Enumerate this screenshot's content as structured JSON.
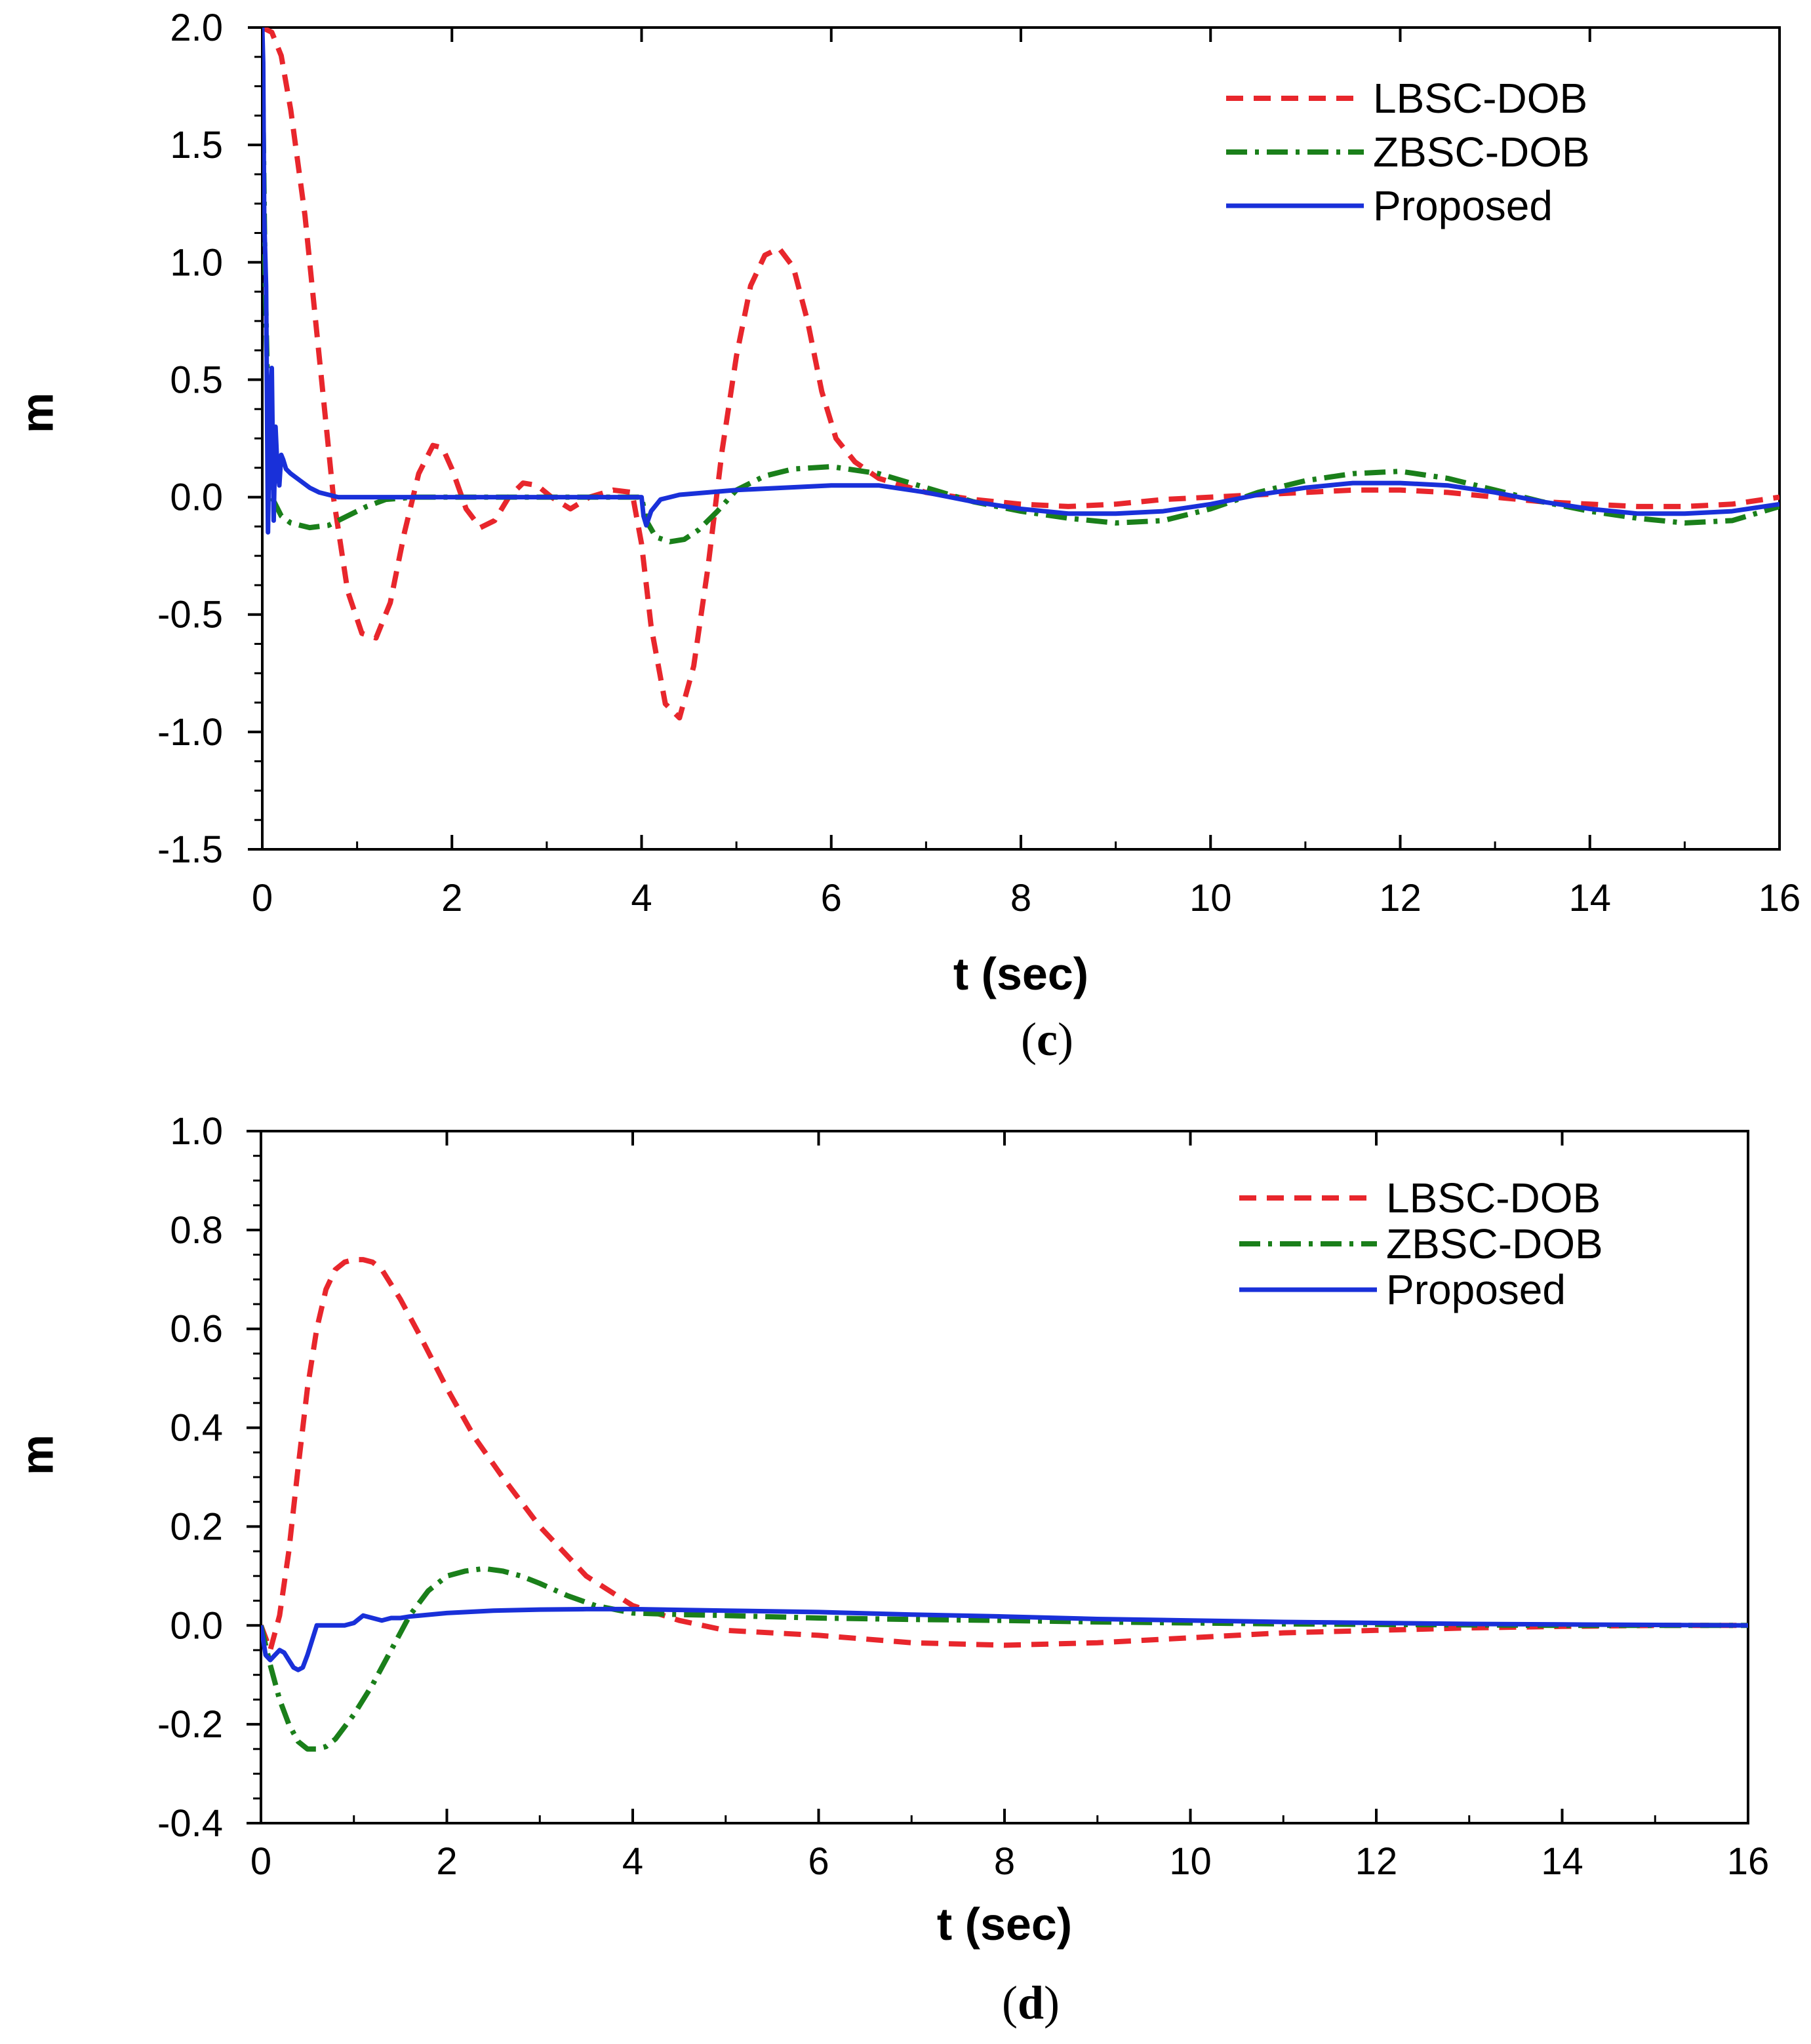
{
  "chart_data": [
    {
      "type": "line",
      "id": "c",
      "caption_open": "(",
      "caption_letter": "c",
      "caption_close": ")",
      "xlabel": "t (sec)",
      "ylabel": "m",
      "xlim": [
        0,
        16
      ],
      "ylim": [
        -1.5,
        2.0
      ],
      "xticks": [
        0,
        2,
        4,
        6,
        8,
        10,
        12,
        14,
        16
      ],
      "yticks": [
        -1.5,
        -1.0,
        -0.5,
        0.0,
        0.5,
        1.0,
        1.5,
        2.0
      ],
      "xtick_labels": [
        "0",
        "2",
        "4",
        "6",
        "8",
        "10",
        "12",
        "14",
        "16"
      ],
      "ytick_labels": [
        "-1.5",
        "-1.0",
        "-0.5",
        "0.0",
        "0.5",
        "1.0",
        "1.5",
        "2.0"
      ],
      "legend_position": "top-right",
      "series": [
        {
          "name": "LBSC-DOB",
          "color": "#e8262c",
          "style": "dashed",
          "x": [
            0,
            0.1,
            0.2,
            0.3,
            0.45,
            0.6,
            0.75,
            0.9,
            1.05,
            1.2,
            1.35,
            1.5,
            1.65,
            1.8,
            1.9,
            2.0,
            2.15,
            2.3,
            2.45,
            2.6,
            2.75,
            2.9,
            3.05,
            3.25,
            3.45,
            3.7,
            3.9,
            4.0,
            4.1,
            4.25,
            4.4,
            4.55,
            4.7,
            4.85,
            5.0,
            5.15,
            5.3,
            5.45,
            5.6,
            5.75,
            5.9,
            6.05,
            6.25,
            6.5,
            7.0,
            7.5,
            8.0,
            8.5,
            9.0,
            9.5,
            10.0,
            10.5,
            11.0,
            11.5,
            12.0,
            12.5,
            13.0,
            13.5,
            14.0,
            14.5,
            15.0,
            15.5,
            16.0
          ],
          "y": [
            2.0,
            1.98,
            1.88,
            1.65,
            1.2,
            0.6,
            0.0,
            -0.4,
            -0.58,
            -0.6,
            -0.45,
            -0.15,
            0.1,
            0.22,
            0.21,
            0.12,
            -0.05,
            -0.13,
            -0.1,
            0.0,
            0.06,
            0.05,
            0.0,
            -0.05,
            0.0,
            0.03,
            0.02,
            -0.2,
            -0.55,
            -0.88,
            -0.94,
            -0.72,
            -0.3,
            0.2,
            0.6,
            0.9,
            1.03,
            1.06,
            0.98,
            0.75,
            0.45,
            0.25,
            0.15,
            0.08,
            0.02,
            -0.01,
            -0.03,
            -0.04,
            -0.03,
            -0.01,
            0.0,
            0.01,
            0.02,
            0.03,
            0.03,
            0.02,
            0.0,
            -0.02,
            -0.03,
            -0.04,
            -0.04,
            -0.03,
            0.0
          ]
        },
        {
          "name": "ZBSC-DOB",
          "color": "#1a7f1a",
          "style": "dashdot",
          "x": [
            0,
            0.03,
            0.06,
            0.1,
            0.2,
            0.3,
            0.5,
            0.7,
            0.9,
            1.1,
            1.3,
            1.6,
            2.0,
            2.5,
            3.0,
            3.5,
            4.0,
            4.05,
            4.15,
            4.3,
            4.45,
            4.6,
            4.8,
            5.0,
            5.3,
            5.6,
            6.0,
            6.5,
            7.0,
            7.5,
            8.0,
            8.5,
            9.0,
            9.5,
            10.0,
            10.5,
            11.0,
            11.5,
            12.0,
            12.5,
            13.0,
            13.5,
            14.0,
            14.5,
            15.0,
            15.5,
            16.0
          ],
          "y": [
            1.9,
            0.95,
            0.4,
            0.0,
            -0.08,
            -0.11,
            -0.13,
            -0.12,
            -0.08,
            -0.04,
            -0.01,
            0.0,
            0.0,
            0.0,
            0.0,
            0.0,
            0.0,
            -0.1,
            -0.17,
            -0.19,
            -0.18,
            -0.14,
            -0.06,
            0.03,
            0.09,
            0.12,
            0.13,
            0.1,
            0.04,
            -0.02,
            -0.06,
            -0.09,
            -0.11,
            -0.1,
            -0.05,
            0.02,
            0.07,
            0.1,
            0.11,
            0.08,
            0.03,
            -0.02,
            -0.06,
            -0.09,
            -0.11,
            -0.1,
            -0.04
          ]
        },
        {
          "name": "Proposed",
          "color": "#1930d9",
          "style": "solid",
          "x": [
            0,
            0.01,
            0.02,
            0.04,
            0.06,
            0.08,
            0.1,
            0.12,
            0.14,
            0.16,
            0.18,
            0.2,
            0.22,
            0.25,
            0.3,
            0.4,
            0.5,
            0.6,
            0.8,
            1.0,
            1.5,
            2.0,
            3.0,
            3.9,
            4.0,
            4.02,
            4.05,
            4.1,
            4.2,
            4.4,
            4.7,
            5.0,
            5.5,
            6.0,
            6.5,
            7.0,
            7.5,
            8.0,
            8.5,
            9.0,
            9.5,
            10.0,
            10.5,
            11.0,
            11.5,
            12.0,
            12.5,
            13.0,
            13.5,
            14.0,
            14.5,
            15.0,
            15.5,
            16.0
          ],
          "y": [
            2.0,
            1.85,
            1.2,
            0.9,
            -0.15,
            0.4,
            0.55,
            -0.1,
            0.3,
            0.12,
            0.05,
            0.18,
            0.16,
            0.12,
            0.1,
            0.07,
            0.04,
            0.02,
            0.0,
            0.0,
            0.0,
            0.0,
            0.0,
            0.0,
            0.0,
            -0.08,
            -0.12,
            -0.06,
            -0.01,
            0.01,
            0.02,
            0.03,
            0.04,
            0.05,
            0.05,
            0.02,
            -0.02,
            -0.05,
            -0.07,
            -0.07,
            -0.06,
            -0.03,
            0.01,
            0.04,
            0.06,
            0.06,
            0.05,
            0.02,
            -0.02,
            -0.05,
            -0.07,
            -0.07,
            -0.06,
            -0.03
          ]
        }
      ]
    },
    {
      "type": "line",
      "id": "d",
      "caption_open": "(",
      "caption_letter": "d",
      "caption_close": ")",
      "xlabel": "t (sec)",
      "ylabel": "m",
      "xlim": [
        0,
        16
      ],
      "ylim": [
        -0.4,
        1.0
      ],
      "xticks": [
        0,
        2,
        4,
        6,
        8,
        10,
        12,
        14,
        16
      ],
      "yticks": [
        -0.4,
        -0.2,
        0.0,
        0.2,
        0.4,
        0.6,
        0.8,
        1.0
      ],
      "xtick_labels": [
        "0",
        "2",
        "4",
        "6",
        "8",
        "10",
        "12",
        "14",
        "16"
      ],
      "ytick_labels": [
        "-0.4",
        "-0.2",
        "0.0",
        "0.2",
        "0.4",
        "0.6",
        "0.8",
        "1.0"
      ],
      "legend_position": "top-right",
      "series": [
        {
          "name": "LBSC-DOB",
          "color": "#e8262c",
          "style": "dashed",
          "x": [
            0,
            0.1,
            0.2,
            0.3,
            0.4,
            0.5,
            0.6,
            0.7,
            0.8,
            0.9,
            1.0,
            1.1,
            1.2,
            1.3,
            1.5,
            1.7,
            2.0,
            2.3,
            2.6,
            3.0,
            3.5,
            4.0,
            4.5,
            5.0,
            6.0,
            7.0,
            8.0,
            9.0,
            10.0,
            11.0,
            12.0,
            13.0,
            14.0,
            15.0,
            16.0
          ],
          "y": [
            0.0,
            -0.05,
            0.02,
            0.15,
            0.32,
            0.48,
            0.6,
            0.68,
            0.72,
            0.735,
            0.74,
            0.74,
            0.735,
            0.72,
            0.66,
            0.59,
            0.48,
            0.38,
            0.3,
            0.2,
            0.1,
            0.04,
            0.01,
            -0.01,
            -0.02,
            -0.035,
            -0.04,
            -0.035,
            -0.025,
            -0.015,
            -0.01,
            -0.005,
            -0.002,
            0.0,
            0.0
          ]
        },
        {
          "name": "ZBSC-DOB",
          "color": "#1a7f1a",
          "style": "dashdot",
          "x": [
            0,
            0.1,
            0.2,
            0.3,
            0.4,
            0.5,
            0.6,
            0.7,
            0.8,
            1.0,
            1.2,
            1.4,
            1.6,
            1.8,
            2.0,
            2.2,
            2.4,
            2.6,
            2.8,
            3.0,
            3.3,
            3.6,
            4.0,
            4.5,
            5.0,
            6.0,
            7.0,
            8.0,
            9.0,
            10.0,
            11.0,
            12.0,
            13.0,
            14.0,
            15.0,
            16.0
          ],
          "y": [
            0.0,
            -0.08,
            -0.15,
            -0.2,
            -0.235,
            -0.25,
            -0.25,
            -0.245,
            -0.23,
            -0.18,
            -0.12,
            -0.05,
            0.02,
            0.07,
            0.1,
            0.11,
            0.115,
            0.11,
            0.1,
            0.085,
            0.06,
            0.04,
            0.025,
            0.022,
            0.02,
            0.015,
            0.012,
            0.01,
            0.007,
            0.005,
            0.003,
            0.002,
            0.001,
            0.0,
            0.0,
            0.0
          ]
        },
        {
          "name": "Proposed",
          "color": "#1930d9",
          "style": "solid",
          "x": [
            0,
            0.05,
            0.1,
            0.15,
            0.2,
            0.25,
            0.3,
            0.35,
            0.4,
            0.45,
            0.5,
            0.6,
            0.7,
            0.8,
            0.9,
            1.0,
            1.1,
            1.2,
            1.3,
            1.4,
            1.5,
            1.6,
            2.0,
            2.5,
            3.0,
            3.5,
            4.0,
            5.0,
            6.0,
            7.0,
            8.0,
            9.0,
            10.0,
            11.0,
            12.0,
            13.0,
            14.0,
            15.0,
            16.0
          ],
          "y": [
            0.0,
            -0.06,
            -0.07,
            -0.06,
            -0.05,
            -0.055,
            -0.07,
            -0.085,
            -0.09,
            -0.085,
            -0.06,
            0.0,
            0.0,
            0.0,
            0.0,
            0.005,
            0.02,
            0.015,
            0.01,
            0.015,
            0.015,
            0.018,
            0.025,
            0.03,
            0.032,
            0.033,
            0.033,
            0.03,
            0.027,
            0.022,
            0.018,
            0.013,
            0.01,
            0.007,
            0.005,
            0.003,
            0.002,
            0.001,
            0.0
          ]
        }
      ]
    }
  ]
}
